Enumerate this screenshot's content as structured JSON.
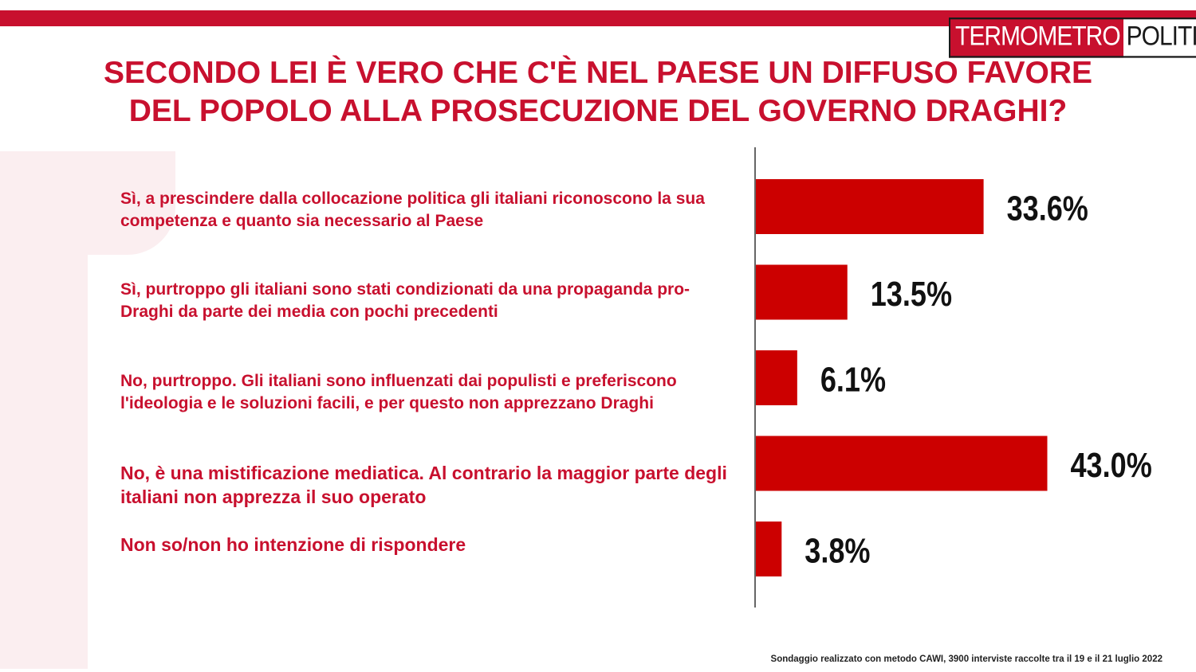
{
  "brand": {
    "logo_part1": "TERMOMETRO",
    "logo_part2": "POLITICO",
    "accent": "#c8102e"
  },
  "title_line1": "SECONDO LEI È VERO CHE C'È NEL PAESE UN DIFFUSO FAVORE",
  "title_line2": "DEL POPOLO ALLA PROSECUZIONE DEL GOVERNO DRAGHI?",
  "chart_data": {
    "type": "bar",
    "orientation": "horizontal",
    "title": "SECONDO LEI È VERO CHE C'È NEL PAESE UN DIFFUSO FAVORE DEL POPOLO ALLA PROSECUZIONE DEL GOVERNO DRAGHI?",
    "categories": [
      "Sì, a prescindere dalla collocazione politica gli italiani riconoscono la sua competenza e quanto sia necessario al Paese",
      "Sì, purtroppo gli italiani sono stati condizionati da una propaganda pro-Draghi da parte dei media con pochi precedenti",
      "No, purtroppo. Gli italiani sono influenzati dai populisti e preferiscono l'ideologia e le soluzioni facili, e per questo non apprezzano Draghi",
      "No, è una mistificazione mediatica. Al contrario la maggior parte degli italiani non apprezza il suo operato",
      "Non so/non ho intenzione di rispondere"
    ],
    "values": [
      33.6,
      13.5,
      6.1,
      43.0,
      3.8
    ],
    "value_labels": [
      "33.6%",
      "13.5%",
      "6.1%",
      "43.0%",
      "3.8%"
    ],
    "bar_color": "#cc0000",
    "xlim": [
      0,
      50
    ],
    "grid": false,
    "legend": "none"
  },
  "footer": "Sondaggio realizzato con metodo CAWI, 3900 interviste raccolte tra il 19 e il 21 luglio 2022"
}
